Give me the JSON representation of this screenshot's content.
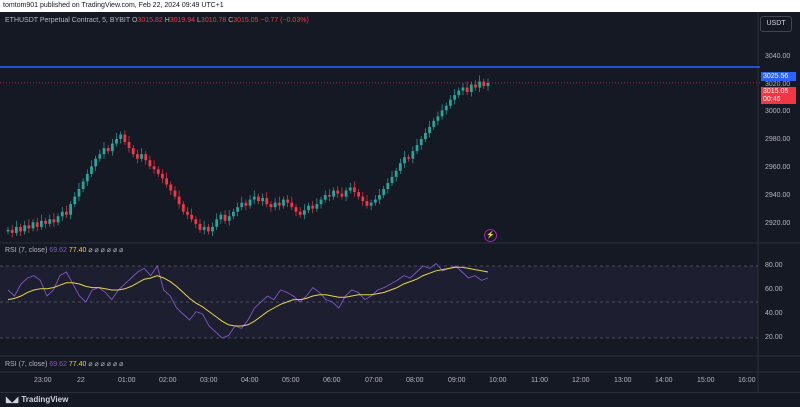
{
  "header": {
    "published": "tomtom901 published on TradingView.com, Feb 22, 2024 09:49 UTC+1"
  },
  "symbol": {
    "name": "ETHUSDT Perpetual Contract, 5, BYBIT",
    "o_label": "O",
    "o": "3015.82",
    "h_label": "H",
    "h": "3019.94",
    "l_label": "L",
    "l": "3010.78",
    "c_label": "C",
    "c": "3015.05",
    "change": "−0.77 (−0.03%)"
  },
  "currency_button": "USDT",
  "price_axis": [
    "3040.00",
    "3020.00",
    "3000.00",
    "2980.00",
    "2960.00",
    "2940.00",
    "2920.00"
  ],
  "price_tags": {
    "blue_line": "3025.56",
    "current_price": "3015.05",
    "countdown": "00:46"
  },
  "rsi_panel": {
    "title": "RSI (7, close)",
    "value1": "69.62",
    "value2": "77.40",
    "placeholders": "⌀ ⌀ ⌀ ⌀ ⌀ ⌀",
    "axis": [
      "80.00",
      "60.00",
      "40.00",
      "20.00"
    ]
  },
  "rsi_panel_2": {
    "title": "RSI (7, close)",
    "value1": "69.62",
    "value2": "77.40",
    "placeholders": "⌀ ⌀ ⌀ ⌀ ⌀ ⌀"
  },
  "time_axis": [
    "23:00",
    "22",
    "01:00",
    "02:00",
    "03:00",
    "04:00",
    "05:00",
    "06:00",
    "07:00",
    "08:00",
    "09:00",
    "10:00",
    "11:00",
    "12:00",
    "13:00",
    "14:00",
    "15:00",
    "16:00"
  ],
  "footer": {
    "logo_text": "TradingView"
  },
  "colors": {
    "up": "#26a69a",
    "down": "#f23645",
    "blue_line": "#2962ff",
    "rsi_line": "#7e57c2",
    "rsi_ma": "#e6d44a",
    "background": "#151924"
  },
  "chart_data": {
    "type": "candlestick",
    "title": "ETHUSDT Perpetual Contract, 5, BYBIT",
    "y_range": [
      2910,
      3050
    ],
    "ohlc_close_series": [
      2918,
      2916,
      2920,
      2917,
      2921,
      2919,
      2923,
      2920,
      2924,
      2922,
      2925,
      2923,
      2927,
      2930,
      2928,
      2935,
      2940,
      2945,
      2950,
      2955,
      2960,
      2965,
      2968,
      2972,
      2970,
      2975,
      2978,
      2981,
      2976,
      2972,
      2968,
      2965,
      2968,
      2964,
      2960,
      2958,
      2955,
      2952,
      2948,
      2944,
      2940,
      2935,
      2930,
      2928,
      2925,
      2922,
      2918,
      2920,
      2917,
      2920,
      2925,
      2928,
      2924,
      2927,
      2930,
      2933,
      2936,
      2934,
      2938,
      2940,
      2937,
      2939,
      2935,
      2933,
      2936,
      2934,
      2938,
      2936,
      2933,
      2930,
      2928,
      2931,
      2934,
      2932,
      2935,
      2938,
      2941,
      2940,
      2944,
      2942,
      2940,
      2944,
      2946,
      2943,
      2940,
      2937,
      2934,
      2936,
      2938,
      2941,
      2945,
      2949,
      2953,
      2957,
      2962,
      2966,
      2965,
      2970,
      2974,
      2978,
      2982,
      2986,
      2990,
      2993,
      2997,
      3000,
      3004,
      3007,
      3010,
      3012,
      3009,
      3014,
      3012,
      3016,
      3013,
      3015
    ],
    "rsi": [
      60,
      55,
      65,
      70,
      72,
      68,
      55,
      60,
      72,
      75,
      65,
      55,
      50,
      60,
      62,
      58,
      52,
      60,
      65,
      70,
      75,
      78,
      72,
      80,
      60,
      55,
      45,
      40,
      35,
      42,
      40,
      30,
      25,
      20,
      22,
      30,
      28,
      35,
      45,
      50,
      55,
      52,
      60,
      58,
      55,
      50,
      55,
      62,
      58,
      52,
      50,
      45,
      55,
      60,
      58,
      52,
      55,
      60,
      62,
      65,
      68,
      72,
      70,
      75,
      80,
      78,
      82,
      76,
      78,
      80,
      75,
      70,
      72,
      68,
      70
    ],
    "rsi_ma": [
      52,
      53,
      55,
      58,
      60,
      61,
      61,
      62,
      64,
      66,
      66,
      65,
      63,
      62,
      62,
      61,
      60,
      60,
      61,
      63,
      66,
      69,
      70,
      72,
      70,
      67,
      63,
      58,
      53,
      49,
      46,
      42,
      38,
      34,
      31,
      30,
      30,
      31,
      34,
      38,
      42,
      45,
      48,
      50,
      52,
      52,
      53,
      55,
      56,
      56,
      55,
      54,
      54,
      55,
      56,
      56,
      56,
      57,
      58,
      60,
      62,
      65,
      67,
      69,
      72,
      74,
      76,
      77,
      78,
      79,
      79,
      78,
      77,
      76,
      75
    ]
  }
}
